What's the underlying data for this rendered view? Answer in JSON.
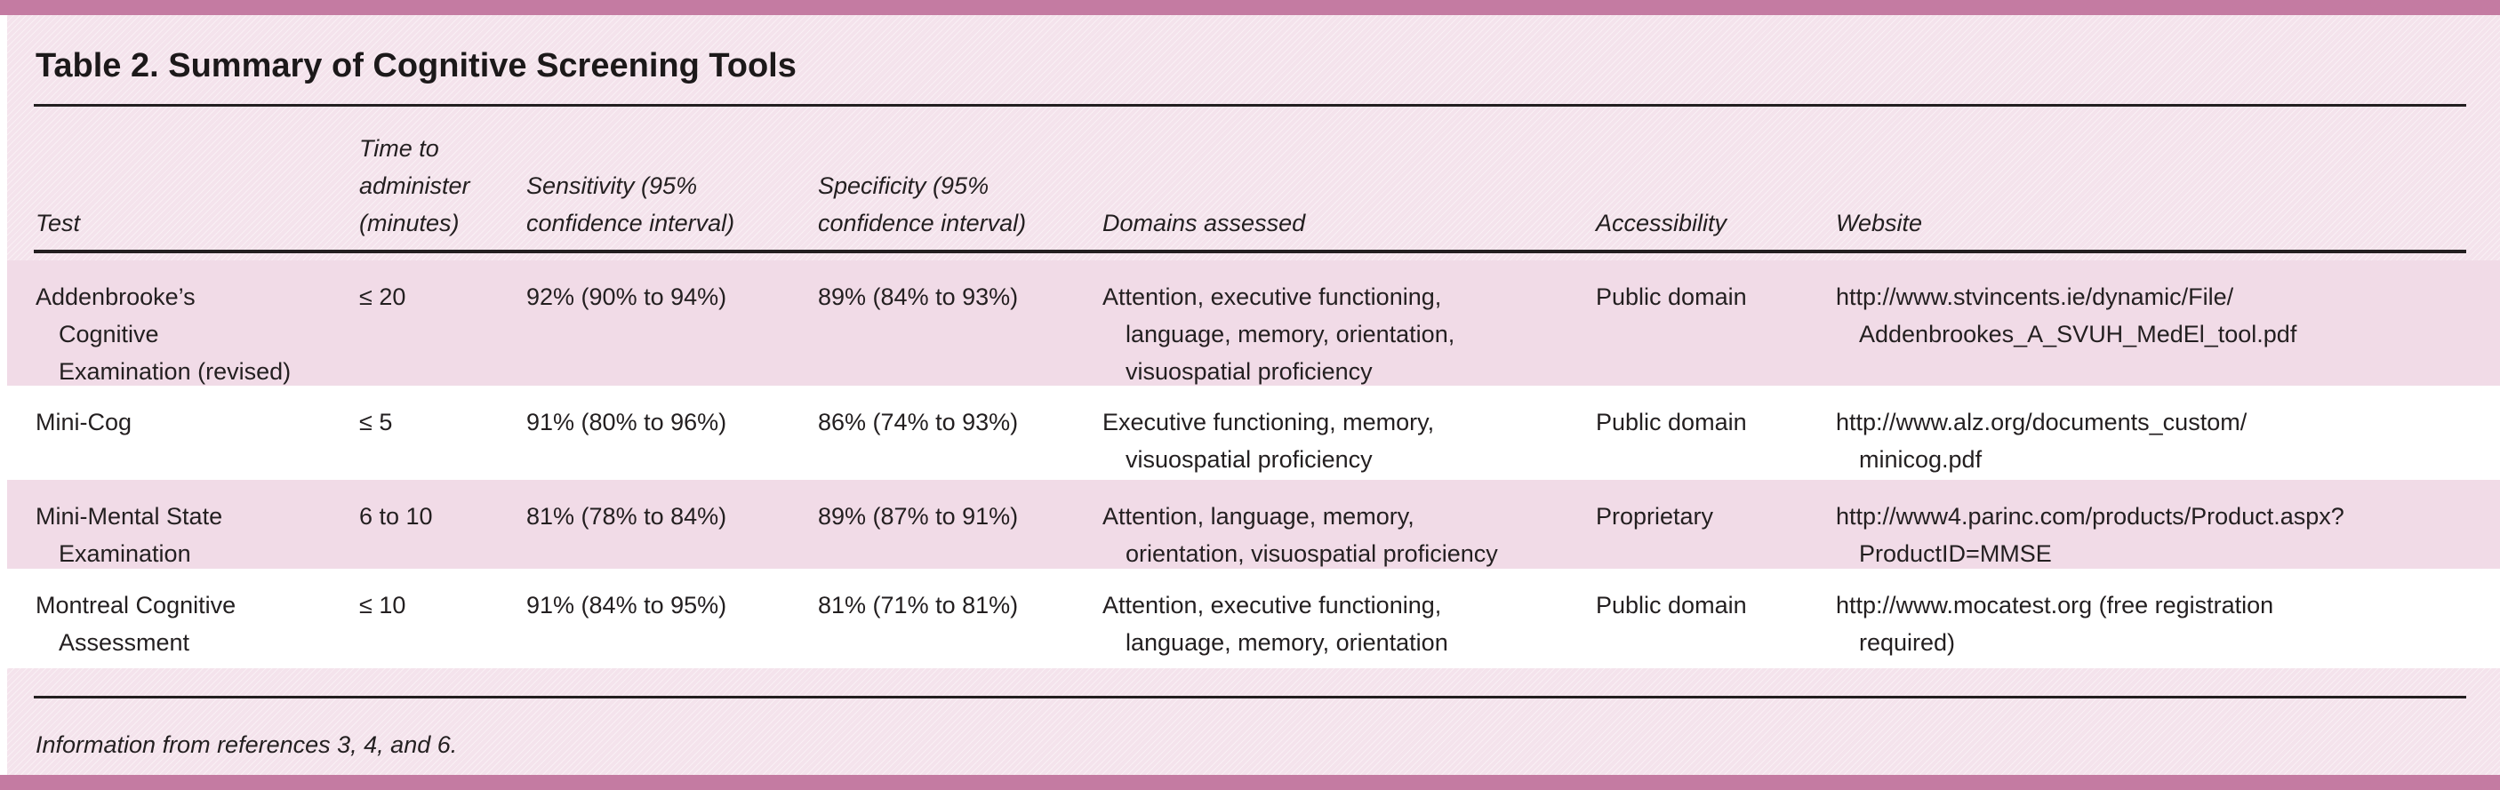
{
  "title": "Table 2. Summary of Cognitive Screening Tools",
  "footnote": "Information from references 3, 4, and 6.",
  "colors": {
    "bar": "#c47ba2",
    "page_bg": "#f4e3ec",
    "band_bg": "#f1dbe7",
    "rule": "#231f20",
    "text": "#231f20"
  },
  "table": {
    "columns": [
      {
        "label_lines": [
          "Test"
        ]
      },
      {
        "label_lines": [
          "Time to",
          "administer",
          "(minutes)"
        ]
      },
      {
        "label_lines": [
          "Sensitivity (95%",
          "confidence interval)"
        ]
      },
      {
        "label_lines": [
          "Specificity (95%",
          "confidence interval)"
        ]
      },
      {
        "label_lines": [
          "Domains assessed"
        ]
      },
      {
        "label_lines": [
          "Accessibility"
        ]
      },
      {
        "label_lines": [
          "Website"
        ]
      }
    ],
    "rows": [
      {
        "test_lines": [
          "Addenbrooke’s",
          "Cognitive",
          "Examination (revised)"
        ],
        "time": "≤ 20",
        "sensitivity": "92% (90% to 94%)",
        "specificity": "89% (84% to 93%)",
        "domains_lines": [
          "Attention, executive functioning,",
          "language, memory, orientation,",
          "visuospatial proficiency"
        ],
        "accessibility": "Public domain",
        "website_lines": [
          "http://www.stvincents.ie/dynamic/File/",
          "Addenbrookes_A_SVUH_MedEl_tool.pdf"
        ]
      },
      {
        "test_lines": [
          "Mini-Cog"
        ],
        "time": "≤ 5",
        "sensitivity": "91% (80% to 96%)",
        "specificity": "86% (74% to 93%)",
        "domains_lines": [
          "Executive functioning, memory,",
          "visuospatial proficiency"
        ],
        "accessibility": "Public domain",
        "website_lines": [
          "http://www.alz.org/documents_custom/",
          "minicog.pdf"
        ]
      },
      {
        "test_lines": [
          "Mini-Mental State",
          "Examination"
        ],
        "time": "6 to 10",
        "sensitivity": "81% (78% to 84%)",
        "specificity": "89% (87% to 91%)",
        "domains_lines": [
          "Attention, language, memory,",
          "orientation, visuospatial proficiency"
        ],
        "accessibility": "Proprietary",
        "website_lines": [
          "http://www4.parinc.com/products/Product.aspx?",
          "ProductID=MMSE"
        ]
      },
      {
        "test_lines": [
          "Montreal Cognitive",
          "Assessment"
        ],
        "time": "≤ 10",
        "sensitivity": "91% (84% to 95%)",
        "specificity": "81% (71% to 81%)",
        "domains_lines": [
          "Attention, executive functioning,",
          "language, memory, orientation"
        ],
        "accessibility": "Public domain",
        "website_lines": [
          "http://www.mocatest.org (free registration",
          "required)"
        ]
      }
    ]
  }
}
